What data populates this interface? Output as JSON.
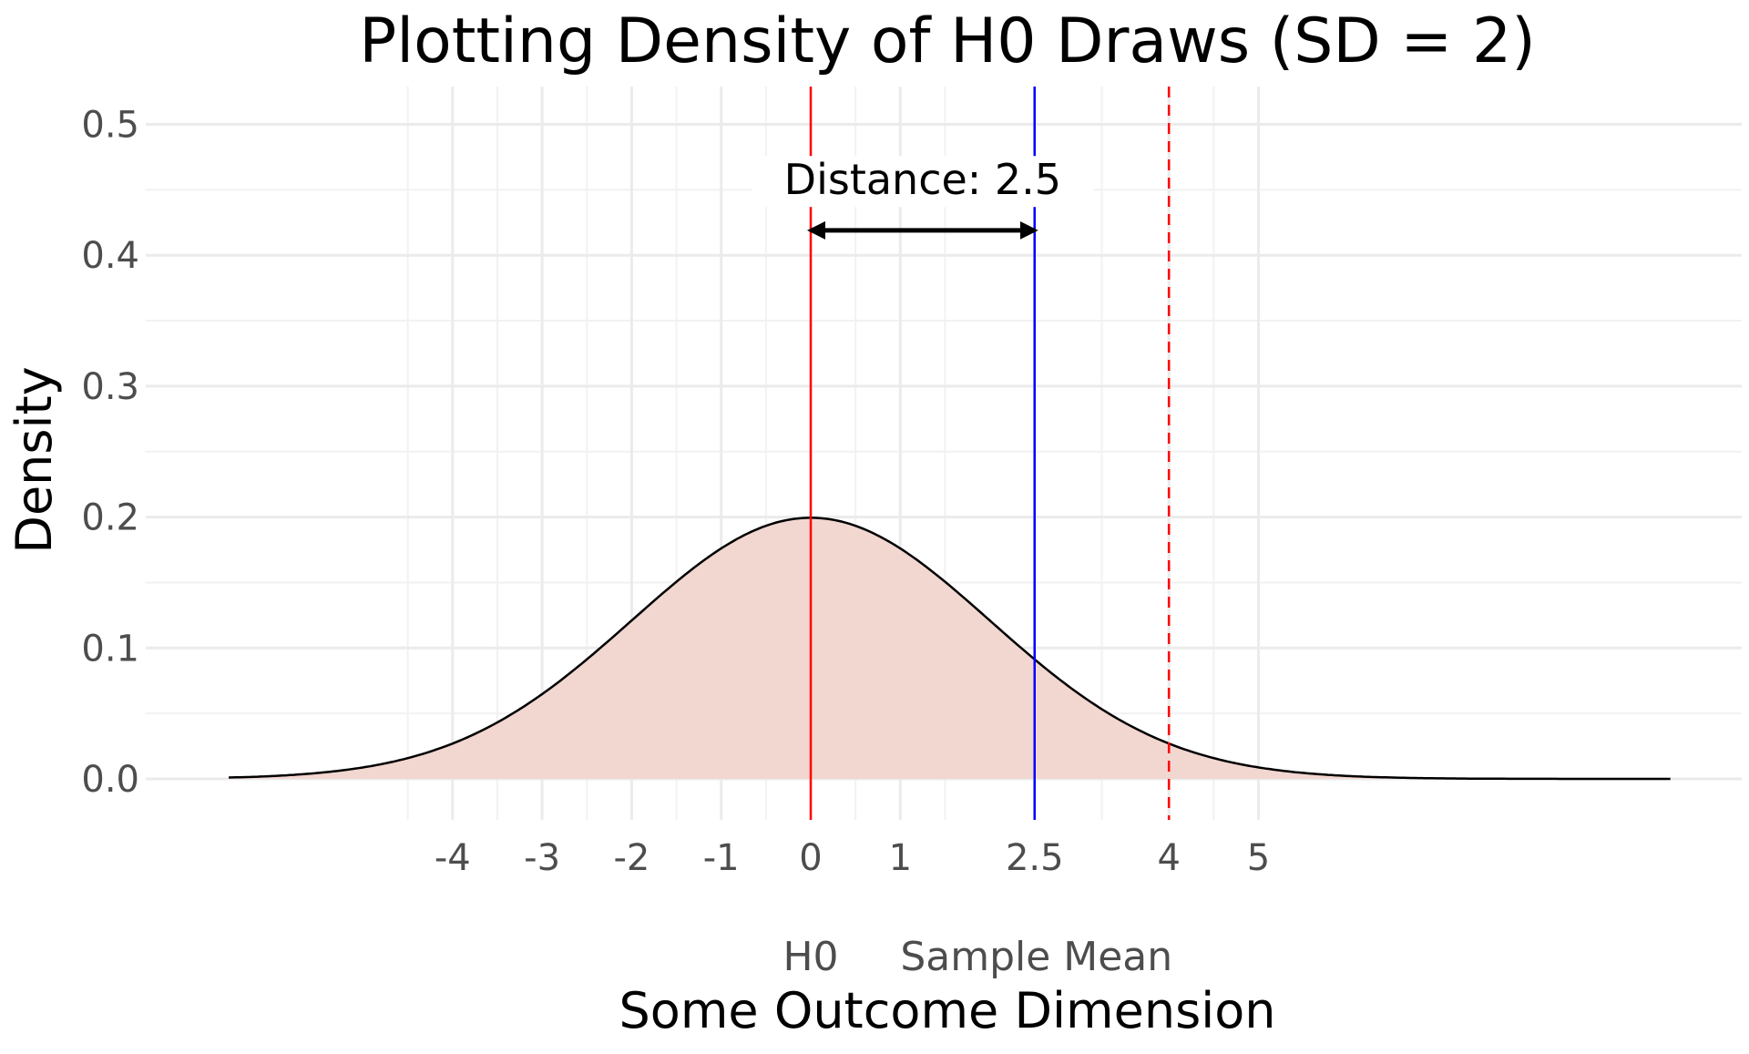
{
  "chart_data": {
    "type": "area",
    "title": "Plotting Density of H0 Draws (SD = 2)",
    "xlabel": "Some Outcome Dimension",
    "ylabel": "Density",
    "xlim": [
      -6.6,
      9.6
    ],
    "ylim": [
      -0.035,
      0.52
    ],
    "x_ticks": [
      -4,
      -3,
      -2,
      -1,
      0,
      1,
      2.5,
      4,
      5
    ],
    "x_tick_labels": [
      "-4",
      "-3",
      "-2",
      "-1",
      "0",
      "1",
      "2.5",
      "4",
      "5"
    ],
    "x_minor_grid": [
      -4.5,
      -3.5,
      -2.5,
      -1.5,
      -0.5,
      0.5,
      1.5,
      3.25,
      4.5
    ],
    "y_ticks": [
      0.0,
      0.1,
      0.2,
      0.3,
      0.4,
      0.5
    ],
    "y_tick_labels": [
      "0.0",
      "0.1",
      "0.2",
      "0.3",
      "0.4",
      "0.5"
    ],
    "grid": true,
    "density": {
      "mean": 0,
      "sd": 2,
      "x_range": [
        -6.5,
        9.6
      ],
      "fill_color": "#f2d6d0",
      "line_color": "#000000"
    },
    "vlines": [
      {
        "x": 0,
        "color": "#ff0000",
        "style": "solid"
      },
      {
        "x": 2.5,
        "color": "#0000ff",
        "style": "solid"
      },
      {
        "x": 4,
        "color": "#ff0000",
        "style": "dashed"
      }
    ],
    "secondary_x_labels": [
      {
        "x": 0,
        "label": "H0"
      },
      {
        "x": 2.5,
        "label": "Sample Mean"
      }
    ],
    "annotation": {
      "text": "Distance: 2.5",
      "arrow_from": 0,
      "arrow_to": 2.5,
      "arrow_y": 0.419,
      "text_y": 0.448
    }
  }
}
